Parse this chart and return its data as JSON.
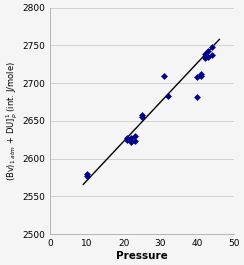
{
  "title": "",
  "xlabel": "Pressure",
  "xlim": [
    0,
    50
  ],
  "ylim": [
    2500,
    2800
  ],
  "xticks": [
    0,
    10,
    20,
    30,
    40,
    50
  ],
  "yticks": [
    2500,
    2550,
    2600,
    2650,
    2700,
    2750,
    2800
  ],
  "scatter_x": [
    10,
    10,
    21,
    21,
    22,
    22,
    23,
    23,
    25,
    25,
    31,
    32,
    40,
    40,
    41,
    41,
    42,
    42,
    43,
    43,
    44,
    44
  ],
  "scatter_y": [
    2577,
    2580,
    2625,
    2628,
    2622,
    2627,
    2623,
    2630,
    2655,
    2658,
    2710,
    2683,
    2682,
    2708,
    2712,
    2710,
    2734,
    2738,
    2742,
    2735,
    2748,
    2737
  ],
  "line_x": [
    9,
    46
  ],
  "line_y": [
    2566,
    2758
  ],
  "scatter_color": "#00008B",
  "line_color": "#000000",
  "marker": "D",
  "marker_size": 3.5,
  "bg_color": "#f5f5f5",
  "grid_color": "#cccccc"
}
